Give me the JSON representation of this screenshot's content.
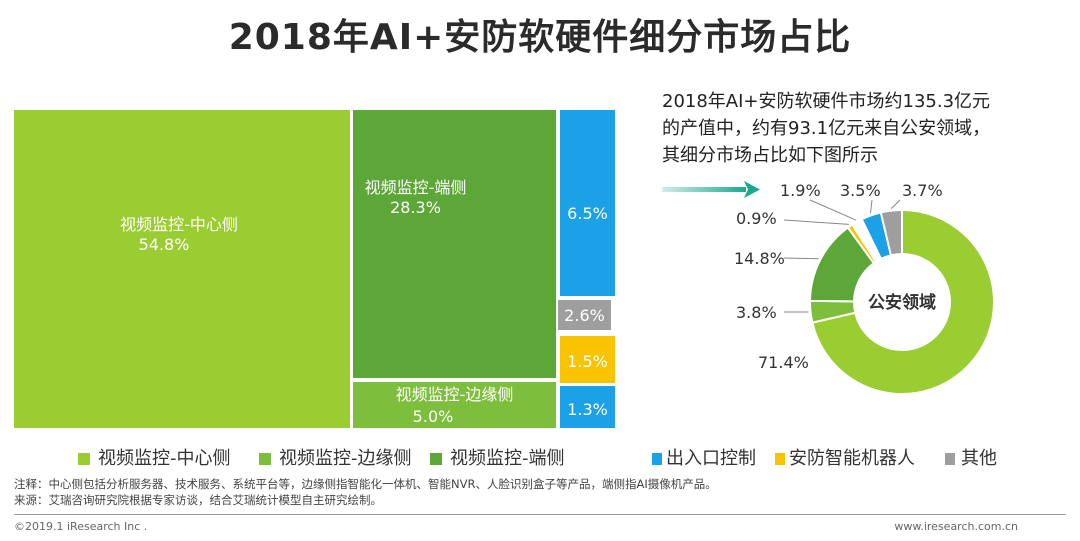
{
  "title": "2018年AI+安防软硬件细分市场占比",
  "description": [
    "2018年AI+安防软硬件市场约135.3亿元",
    "的产值中，约有93.1亿元来自公安领域，",
    "其细分市场占比如下图所示"
  ],
  "colors": {
    "lime": "#9ACD32",
    "green": "#5DA739",
    "mid": "#7DBE3D",
    "blue": "#1AA1E6",
    "gold": "#F8C300",
    "gray": "#9E9E9E"
  },
  "treemap": {
    "center": {
      "label": "视频监控-中心侧",
      "value": "54.8%"
    },
    "edge": {
      "label": "视频监控-端侧",
      "value": "28.3%"
    },
    "border": {
      "label": "视频监控-边缘侧",
      "value": "5.0%"
    },
    "entry": {
      "value": "6.5%"
    },
    "other": {
      "value": "2.6%"
    },
    "robot": {
      "value": "1.5%"
    },
    "small": {
      "value": "1.3%"
    }
  },
  "legend": [
    {
      "label": "视频监控-中心侧",
      "color": "#9ACD32"
    },
    {
      "label": "视频监控-边缘侧",
      "color": "#7DBE3D"
    },
    {
      "label": "视频监控-端侧",
      "color": "#5DA739"
    },
    {
      "label": "出入口控制",
      "color": "#1AA1E6"
    },
    {
      "label": "安防智能机器人",
      "color": "#F8C300"
    },
    {
      "label": "其他",
      "color": "#9E9E9E"
    }
  ],
  "chart_data": {
    "type": "pie",
    "title": "公安领域",
    "categories": [
      "视频监控-中心侧",
      "视频监控-边缘侧",
      "视频监控-端侧",
      "安防智能机器人",
      "其他",
      "出入口控制",
      "其他(灰)"
    ],
    "values": [
      71.4,
      3.8,
      14.8,
      0.9,
      1.9,
      3.5,
      3.7
    ],
    "labels": [
      "71.4%",
      "3.8%",
      "14.8%",
      "0.9%",
      "1.9%",
      "3.5%",
      "3.7%"
    ],
    "colors": [
      "#9ACD32",
      "#7DBE3D",
      "#5DA739",
      "#F8C300",
      "#FFFFFF",
      "#1AA1E6",
      "#9E9E9E"
    ]
  },
  "notes": {
    "note": "注释：中心侧包括分析服务器、技术服务、系统平台等，边缘侧指智能化一体机、智能NVR、人脸识别盒子等产品，端侧指AI摄像机产品。",
    "source": "来源：艾瑞咨询研究院根据专家访谈，结合艾瑞统计模型自主研究绘制。"
  },
  "footer": {
    "copyright": "©2019.1 iResearch Inc .",
    "site": "www.iresearch.com.cn"
  }
}
